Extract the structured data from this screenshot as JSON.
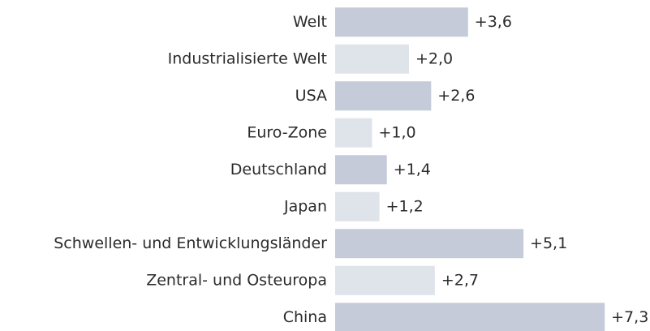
{
  "chart_data": {
    "type": "bar",
    "orientation": "horizontal",
    "categories": [
      "Welt",
      "Industrialisierte Welt",
      "USA",
      "Euro-Zone",
      "Deutschland",
      "Japan",
      "Schwellen- und Entwicklungsländer",
      "Zentral- und Osteuropa",
      "China"
    ],
    "values": [
      3.6,
      2.0,
      2.6,
      1.0,
      1.4,
      1.2,
      5.1,
      2.7,
      7.3
    ],
    "value_labels": [
      "+3,6",
      "+2,0",
      "+2,6",
      "+1,0",
      "+1,4",
      "+1,2",
      "+5,1",
      "+2,7",
      "+7,3"
    ],
    "colors": [
      "#c5cbd8",
      "#dfe3ea",
      "#c5cbd8",
      "#dfe3ea",
      "#c5cbd8",
      "#dfe3ea",
      "#c5cbd8",
      "#dfe3ea",
      "#c5cbd8"
    ]
  }
}
